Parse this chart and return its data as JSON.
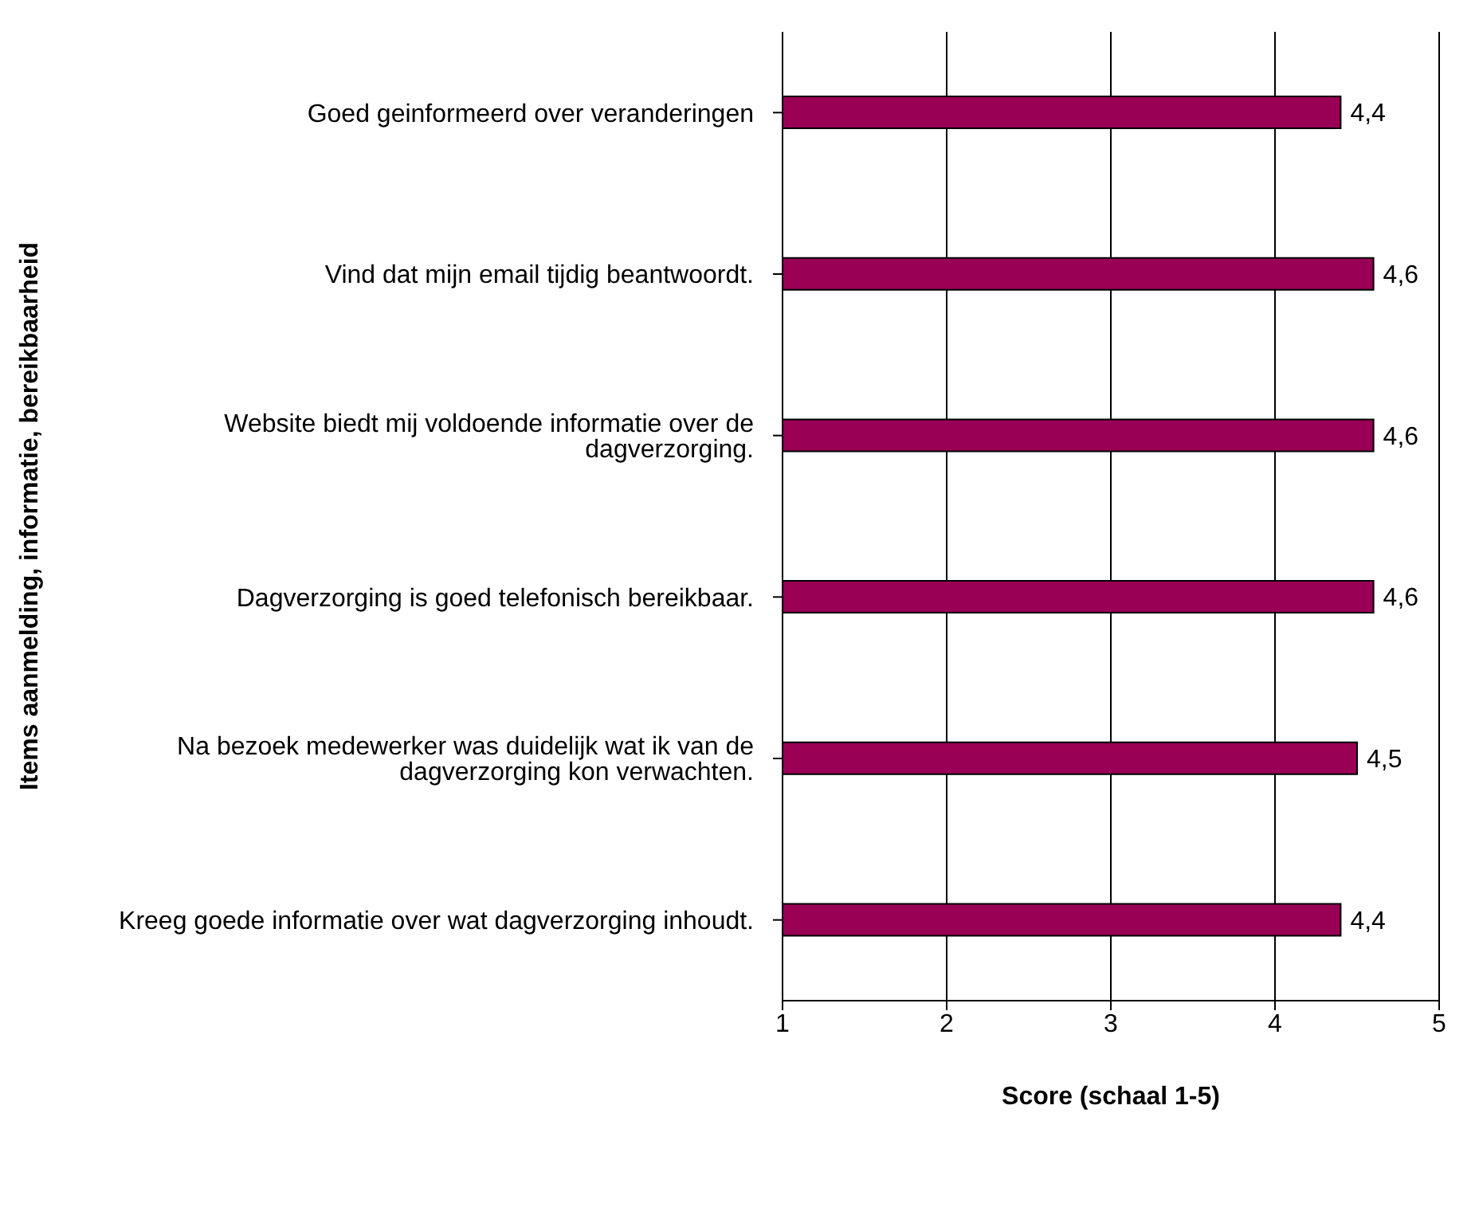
{
  "chart_data": {
    "type": "bar",
    "orientation": "horizontal",
    "categories": [
      "Goed geinformeerd over veranderingen",
      "Vind dat mijn email tijdig beantwoordt.",
      "Website biedt mij voldoende informatie over de dagverzorging.",
      "Dagverzorging is goed telefonisch bereikbaar.",
      "Na bezoek medewerker was duidelijk wat ik van de dagverzorging kon verwachten.",
      "Kreeg goede informatie over wat dagverzorging inhoudt."
    ],
    "values": [
      4.4,
      4.6,
      4.6,
      4.6,
      4.5,
      4.4
    ],
    "value_labels": [
      "4,4",
      "4,6",
      "4,6",
      "4,6",
      "4,5",
      "4,4"
    ],
    "color": "#990055",
    "xlim": [
      1,
      5
    ],
    "xticks": [
      1,
      2,
      3,
      4,
      5
    ],
    "grid": "x",
    "xlabel": "Score (schaal 1-5)",
    "ylabel": "Items aanmelding, informatie, bereikbaarheid"
  }
}
